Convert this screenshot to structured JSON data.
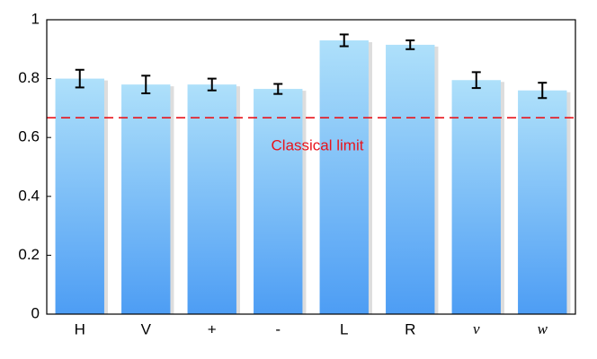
{
  "chart_data": {
    "type": "bar",
    "categories": [
      "H",
      "V",
      "+",
      "-",
      "L",
      "R",
      "v",
      "w"
    ],
    "values": [
      0.8,
      0.78,
      0.78,
      0.765,
      0.93,
      0.915,
      0.795,
      0.76
    ],
    "errors": [
      0.03,
      0.03,
      0.02,
      0.017,
      0.02,
      0.015,
      0.027,
      0.026
    ],
    "italic_categories": [
      6,
      7
    ],
    "color": "#6fb4f6",
    "ylim": [
      0,
      1
    ],
    "yticks": [
      0,
      0.2,
      0.4,
      0.6,
      0.8,
      1
    ],
    "classical_limit": {
      "value": 0.667,
      "label": "Classical limit",
      "color": "#e8141c"
    }
  }
}
